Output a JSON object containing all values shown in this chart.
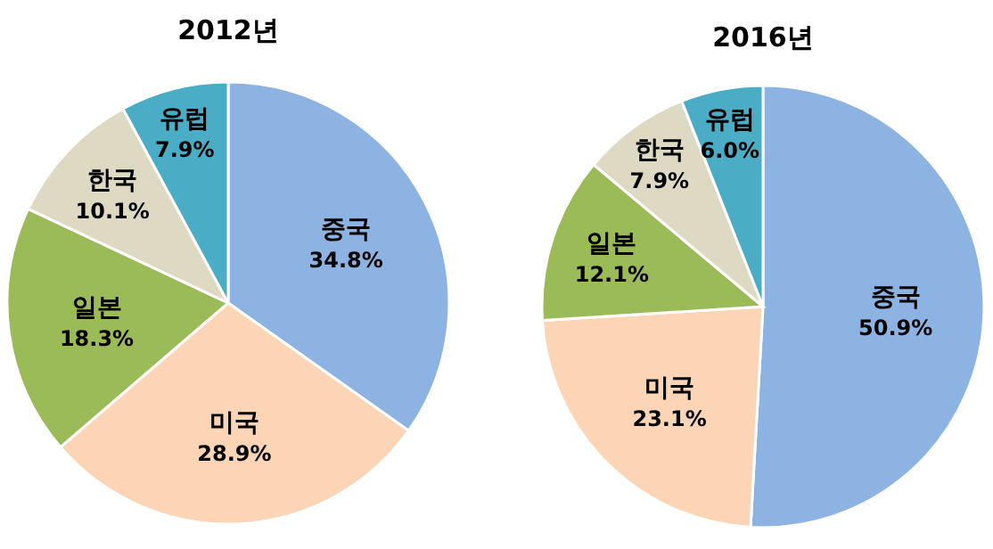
{
  "chart_data": [
    {
      "type": "pie",
      "title": "2012년",
      "categories": [
        "중국",
        "미국",
        "일본",
        "한국",
        "유럽"
      ],
      "values": [
        34.8,
        28.9,
        18.3,
        10.1,
        7.9
      ],
      "value_labels": [
        "34.8%",
        "28.9%",
        "18.3%",
        "10.1%",
        "7.9%"
      ],
      "colors": [
        "#8db3e2",
        "#fbd5b5",
        "#9bbb59",
        "#ddd9c3",
        "#4bacc6"
      ]
    },
    {
      "type": "pie",
      "title": "2016년",
      "categories": [
        "중국",
        "미국",
        "일본",
        "한국",
        "유럽"
      ],
      "values": [
        50.9,
        23.1,
        12.1,
        7.9,
        6.0
      ],
      "value_labels": [
        "50.9%",
        "23.1%",
        "12.1%",
        "7.9%",
        "6.0%"
      ],
      "colors": [
        "#8db3e2",
        "#fbd5b5",
        "#9bbb59",
        "#ddd9c3",
        "#4bacc6"
      ]
    }
  ]
}
